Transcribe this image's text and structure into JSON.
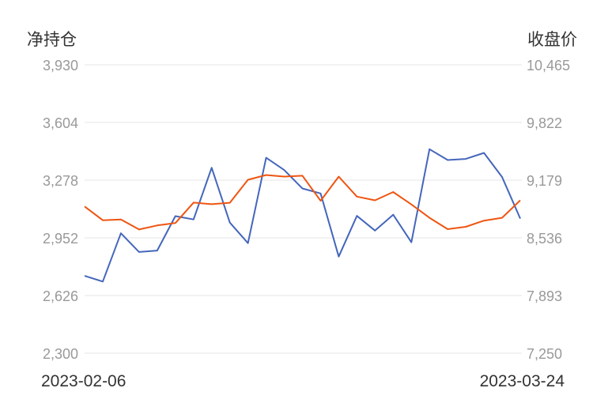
{
  "chart_data": {
    "type": "line",
    "left_axis_label": "净持仓",
    "right_axis_label": "收盘价",
    "left_ticks": [
      "3,930",
      "3,604",
      "3,278",
      "2,952",
      "2,626",
      "2,300"
    ],
    "right_ticks": [
      "10,465",
      "9,822",
      "9,179",
      "8,536",
      "7,893",
      "7,250"
    ],
    "ylim_left": [
      2300,
      3930
    ],
    "ylim_right": [
      7250,
      10465
    ],
    "x_tick_labels": [
      "2023-02-06",
      "2023-03-24"
    ],
    "grid": true,
    "series": [
      {
        "axis": "left",
        "color": "#4466bb",
        "values": [
          2737,
          2705,
          2978,
          2872,
          2880,
          3075,
          3056,
          3348,
          3038,
          2922,
          3405,
          3335,
          3231,
          3203,
          2846,
          3076,
          2993,
          3083,
          2927,
          3453,
          3392,
          3398,
          3432,
          3296,
          3061
        ]
      },
      {
        "axis": "right",
        "color": "#ee5511",
        "values": [
          8886,
          8732,
          8741,
          8629,
          8674,
          8701,
          8929,
          8911,
          8927,
          9183,
          9236,
          9219,
          9228,
          8949,
          9219,
          8996,
          8954,
          9047,
          8909,
          8760,
          8633,
          8659,
          8728,
          8760,
          8954
        ]
      }
    ]
  }
}
